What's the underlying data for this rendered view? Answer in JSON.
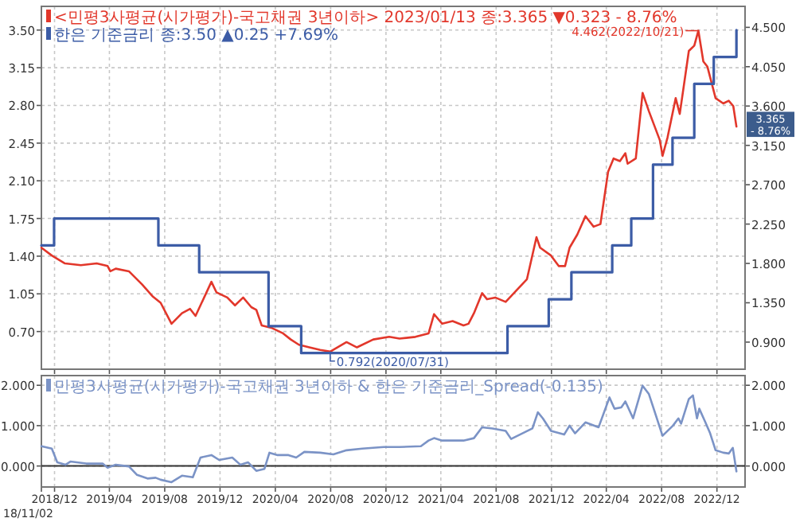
{
  "chart_data": [
    {
      "type": "line",
      "xlim": [
        "2018-11-02",
        "2023-02-01"
      ],
      "tick_labels": "y",
      "grid": true,
      "legend": "top left",
      "xticks": [
        {
          "value": "2018-12-01",
          "label": null
        },
        {
          "value": "2019-04-01",
          "label": null
        },
        {
          "value": "2019-08-01",
          "label": null
        },
        {
          "value": "2019-12-01",
          "label": null
        },
        {
          "value": "2020-04-01",
          "label": null
        },
        {
          "value": "2020-08-01",
          "label": null
        },
        {
          "value": "2020-12-01",
          "label": null
        },
        {
          "value": "2021-04-01",
          "label": null
        },
        {
          "value": "2021-08-01",
          "label": null
        },
        {
          "value": "2021-12-01",
          "label": null
        },
        {
          "value": "2022-04-01",
          "label": null
        },
        {
          "value": "2022-08-01",
          "label": null
        },
        {
          "value": "2022-12-01",
          "label": null
        }
      ],
      "ylim": [
        0.35,
        3.72
      ],
      "yticks": [
        {
          "value": 0.7,
          "label": "0.70"
        },
        {
          "value": 1.05,
          "label": "1.05"
        },
        {
          "value": 1.4,
          "label": "1.40"
        },
        {
          "value": 1.75,
          "label": "1.75"
        },
        {
          "value": 2.1,
          "label": "2.10"
        },
        {
          "value": 2.45,
          "label": "2.45"
        },
        {
          "value": 2.8,
          "label": "2.80"
        },
        {
          "value": 3.15,
          "label": "3.15"
        },
        {
          "value": 3.5,
          "label": "3.50"
        }
      ],
      "y2lim": [
        0.59,
        4.74
      ],
      "y2ticks": [
        {
          "value": 0.9,
          "label": "0.900"
        },
        {
          "value": 1.35,
          "label": "1.350"
        },
        {
          "value": 1.8,
          "label": "1.800"
        },
        {
          "value": 2.25,
          "label": "2.250"
        },
        {
          "value": 2.7,
          "label": "2.700"
        },
        {
          "value": 3.15,
          "label": "3.150"
        },
        {
          "value": 3.6,
          "label": "3.600"
        },
        {
          "value": 4.05,
          "label": "4.050"
        },
        {
          "value": 4.5,
          "label": "4.500"
        }
      ],
      "series": [
        {
          "name": "<민평3사평균(시가평가)-국고채권 3년이하> 2023/01/13 종:3.365 ▼0.323 - 8.76%",
          "type": "line",
          "axis": "y2",
          "color": "#e2372b",
          "x": [
            "2018-11-02",
            "2018-11-25",
            "2018-12-24",
            "2019-01-28",
            "2019-03-04",
            "2019-03-28",
            "2019-04-03",
            "2019-04-15",
            "2019-05-14",
            "2019-06-12",
            "2019-07-06",
            "2019-07-23",
            "2019-08-16",
            "2019-09-08",
            "2019-09-26",
            "2019-10-08",
            "2019-11-12",
            "2019-11-23",
            "2019-12-17",
            "2020-01-03",
            "2020-01-21",
            "2020-02-08",
            "2020-02-19",
            "2020-03-02",
            "2020-03-25",
            "2020-04-18",
            "2020-05-05",
            "2020-05-23",
            "2020-06-15",
            "2020-07-09",
            "2020-07-31",
            "2020-09-05",
            "2020-09-28",
            "2020-11-03",
            "2020-12-08",
            "2020-12-31",
            "2021-02-04",
            "2021-03-05",
            "2021-03-17",
            "2021-04-04",
            "2021-04-27",
            "2021-05-21",
            "2021-06-01",
            "2021-06-13",
            "2021-07-01",
            "2021-07-12",
            "2021-07-30",
            "2021-08-22",
            "2021-10-08",
            "2021-10-29",
            "2021-11-06",
            "2021-11-30",
            "2021-12-17",
            "2021-12-31",
            "2022-01-10",
            "2022-01-27",
            "2022-02-14",
            "2022-03-04",
            "2022-03-19",
            "2022-04-05",
            "2022-04-17",
            "2022-05-01",
            "2022-05-13",
            "2022-05-18",
            "2022-06-05",
            "2022-06-20",
            "2022-07-04",
            "2022-07-28",
            "2022-08-03",
            "2022-08-14",
            "2022-09-01",
            "2022-09-10",
            "2022-09-30",
            "2022-10-12",
            "2022-10-21",
            "2022-11-01",
            "2022-11-10",
            "2022-11-28",
            "2022-12-15",
            "2022-12-27",
            "2023-01-06",
            "2023-01-13"
          ],
          "values": [
            1.98,
            1.89,
            1.8,
            1.78,
            1.8,
            1.77,
            1.71,
            1.74,
            1.71,
            1.56,
            1.42,
            1.35,
            1.11,
            1.23,
            1.28,
            1.2,
            1.59,
            1.47,
            1.41,
            1.32,
            1.41,
            1.3,
            1.27,
            1.09,
            1.06,
            1.0,
            0.93,
            0.87,
            0.84,
            0.81,
            0.792,
            0.9,
            0.84,
            0.93,
            0.96,
            0.94,
            0.96,
            1.0,
            1.22,
            1.11,
            1.14,
            1.09,
            1.11,
            1.23,
            1.46,
            1.39,
            1.41,
            1.36,
            1.62,
            2.1,
            1.98,
            1.89,
            1.77,
            1.77,
            1.98,
            2.13,
            2.34,
            2.22,
            2.25,
            2.85,
            3.0,
            2.97,
            3.06,
            2.94,
            3.0,
            3.75,
            3.54,
            3.21,
            3.03,
            3.24,
            3.69,
            3.51,
            4.23,
            4.29,
            4.462,
            4.11,
            4.05,
            3.69,
            3.63,
            3.66,
            3.6,
            3.365
          ],
          "value_labels": [
            null,
            null,
            null,
            null,
            null,
            null,
            null,
            null,
            null,
            null,
            null,
            null,
            null,
            null,
            null,
            null,
            null,
            null,
            null,
            null,
            null,
            null,
            null,
            null,
            null,
            null,
            null,
            null,
            null,
            null,
            "0.792(2020/07/31)",
            null,
            null,
            null,
            null,
            null,
            null,
            null,
            null,
            null,
            null,
            null,
            null,
            null,
            null,
            null,
            null,
            null,
            null,
            null,
            null,
            null,
            null,
            null,
            null,
            null,
            null,
            null,
            null,
            null,
            null,
            null,
            null,
            null,
            null,
            null,
            null,
            null,
            null,
            null,
            null,
            null,
            null,
            null,
            "4.462(2022/10/21)",
            null,
            null,
            null,
            null,
            null,
            null,
            "3.365\n- 8.76%"
          ]
        },
        {
          "name": "한은 기준금리 종:3.50 ▲0.25 +7.69%",
          "type": "step",
          "axis": "y",
          "color": "#3c5ca6",
          "x": [
            "2018-11-02",
            "2018-11-30",
            "2019-07-18",
            "2019-10-16",
            "2020-03-17",
            "2020-05-28",
            "2021-08-26",
            "2021-11-25",
            "2022-01-14",
            "2022-04-14",
            "2022-05-26",
            "2022-07-13",
            "2022-08-25",
            "2022-10-12",
            "2022-11-24",
            "2023-01-13"
          ],
          "values": [
            1.5,
            1.75,
            1.5,
            1.25,
            0.75,
            0.5,
            0.75,
            1.0,
            1.25,
            1.5,
            1.75,
            2.25,
            2.5,
            3.0,
            3.25,
            3.5
          ]
        }
      ]
    },
    {
      "type": "line",
      "xlim": [
        "2018-11-02",
        "2023-02-01"
      ],
      "grid": true,
      "legend": "top left",
      "annotations": [
        "18/11/02"
      ],
      "xticks": [
        {
          "value": "2018-11-02",
          "label": null
        },
        {
          "value": "2018-12-01",
          "label": "2018/12"
        },
        {
          "value": "2019-04-01",
          "label": "2019/04"
        },
        {
          "value": "2019-08-01",
          "label": "2019/08"
        },
        {
          "value": "2019-12-01",
          "label": "2019/12"
        },
        {
          "value": "2020-04-01",
          "label": "2020/04"
        },
        {
          "value": "2020-08-01",
          "label": "2020/08"
        },
        {
          "value": "2020-12-01",
          "label": "2020/12"
        },
        {
          "value": "2021-04-01",
          "label": "2021/04"
        },
        {
          "value": "2021-08-01",
          "label": "2021/08"
        },
        {
          "value": "2021-12-01",
          "label": "2021/12"
        },
        {
          "value": "2022-04-01",
          "label": "2022/04"
        },
        {
          "value": "2022-08-01",
          "label": "2022/08"
        },
        {
          "value": "2022-12-01",
          "label": "2022/12"
        }
      ],
      "ylim": [
        -0.52,
        2.24
      ],
      "yticks": [
        {
          "value": 0,
          "label": "0.000"
        },
        {
          "value": 1,
          "label": "1.000"
        },
        {
          "value": 2,
          "label": "2.000"
        }
      ],
      "y2lim": [
        -0.52,
        2.24
      ],
      "y2ticks": [
        {
          "value": 0,
          "label": "0.000"
        },
        {
          "value": 1,
          "label": "1.000"
        },
        {
          "value": 2,
          "label": "2.000"
        }
      ],
      "ref_lines": [
        {
          "axis": "y",
          "value": 0,
          "color": "#333333"
        }
      ],
      "series": [
        {
          "name": "민평3사평균(시가평가)-국고채권 3년이하 & 한은 기준금리_Spread(-0.135)",
          "type": "line",
          "axis": "y",
          "color": "#7b93c6",
          "x": [
            "2018-11-02",
            "2018-11-25",
            "2018-12-07",
            "2018-12-25",
            "2019-01-05",
            "2019-02-09",
            "2019-03-17",
            "2019-03-28",
            "2019-04-15",
            "2019-05-14",
            "2019-06-01",
            "2019-06-24",
            "2019-07-12",
            "2019-07-23",
            "2019-08-16",
            "2019-09-08",
            "2019-10-02",
            "2019-10-19",
            "2019-11-12",
            "2019-11-29",
            "2019-12-28",
            "2020-01-15",
            "2020-02-01",
            "2020-02-19",
            "2020-03-08",
            "2020-03-19",
            "2020-04-06",
            "2020-04-30",
            "2020-05-17",
            "2020-06-04",
            "2020-07-09",
            "2020-08-07",
            "2020-09-05",
            "2020-10-10",
            "2020-11-26",
            "2020-12-31",
            "2021-02-16",
            "2021-03-05",
            "2021-03-17",
            "2021-04-04",
            "2021-05-21",
            "2021-06-13",
            "2021-07-01",
            "2021-07-24",
            "2021-08-22",
            "2021-09-03",
            "2021-10-20",
            "2021-11-01",
            "2021-11-12",
            "2021-11-30",
            "2021-12-29",
            "2022-01-10",
            "2022-01-22",
            "2022-02-14",
            "2022-03-15",
            "2022-04-08",
            "2022-04-19",
            "2022-05-04",
            "2022-05-13",
            "2022-05-30",
            "2022-06-20",
            "2022-07-04",
            "2022-08-03",
            "2022-08-26",
            "2022-09-07",
            "2022-09-13",
            "2022-09-30",
            "2022-10-09",
            "2022-10-18",
            "2022-10-23",
            "2022-11-04",
            "2022-11-16",
            "2022-11-28",
            "2022-12-15",
            "2022-12-27",
            "2023-01-05",
            "2023-01-13"
          ],
          "values": [
            0.49,
            0.43,
            0.09,
            0.03,
            0.11,
            0.06,
            0.06,
            -0.04,
            0.03,
            -0.01,
            -0.22,
            -0.31,
            -0.29,
            -0.34,
            -0.4,
            -0.24,
            -0.28,
            0.21,
            0.27,
            0.15,
            0.21,
            0.03,
            0.09,
            -0.12,
            -0.07,
            0.33,
            0.27,
            0.27,
            0.21,
            0.35,
            0.33,
            0.29,
            0.39,
            0.43,
            0.47,
            0.47,
            0.49,
            0.63,
            0.69,
            0.63,
            0.63,
            0.69,
            0.96,
            0.93,
            0.87,
            0.67,
            0.93,
            1.33,
            1.18,
            0.87,
            0.78,
            1.0,
            0.81,
            1.08,
            0.96,
            1.7,
            1.42,
            1.45,
            1.6,
            1.18,
            1.99,
            1.78,
            0.75,
            1.0,
            1.18,
            1.05,
            1.66,
            1.75,
            1.18,
            1.42,
            1.12,
            0.81,
            0.39,
            0.33,
            0.31,
            0.45,
            -0.135
          ]
        }
      ]
    }
  ]
}
